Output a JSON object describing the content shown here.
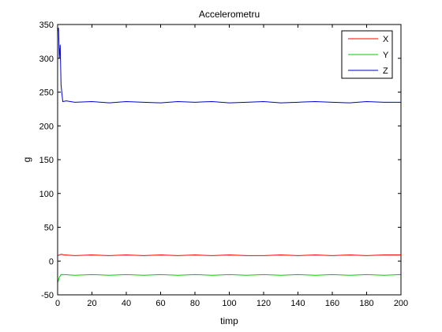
{
  "chart_data": {
    "type": "line",
    "title": "Accelerometru",
    "xlabel": "timp",
    "ylabel": "g",
    "xlim": [
      0,
      200
    ],
    "ylim": [
      -50,
      350
    ],
    "xticks": [
      0,
      20,
      40,
      60,
      80,
      100,
      120,
      140,
      160,
      180,
      200
    ],
    "yticks": [
      -50,
      0,
      50,
      100,
      150,
      200,
      250,
      300,
      350
    ],
    "grid": false,
    "legend_position": "top-right",
    "series": [
      {
        "name": "X",
        "color": "#ff0000",
        "x": [
          0,
          1,
          2,
          4,
          10,
          20,
          30,
          40,
          50,
          60,
          70,
          80,
          90,
          100,
          110,
          120,
          130,
          140,
          150,
          160,
          170,
          180,
          190,
          200
        ],
        "values": [
          8,
          9,
          10,
          9,
          8,
          9,
          8,
          9,
          8,
          9,
          8,
          9,
          8,
          9,
          8,
          8,
          9,
          8,
          9,
          8,
          9,
          8,
          9,
          9
        ]
      },
      {
        "name": "Y",
        "color": "#00cc00",
        "x": [
          0,
          1,
          2,
          4,
          10,
          20,
          30,
          40,
          50,
          60,
          70,
          80,
          90,
          100,
          110,
          120,
          130,
          140,
          150,
          160,
          170,
          180,
          190,
          200
        ],
        "values": [
          -32,
          -24,
          -20,
          -20,
          -21,
          -20,
          -21,
          -20,
          -21,
          -20,
          -21,
          -20,
          -21,
          -20,
          -21,
          -20,
          -21,
          -20,
          -21,
          -20,
          -21,
          -20,
          -21,
          -20
        ]
      },
      {
        "name": "Z",
        "color": "#0000cc",
        "x": [
          0,
          0.5,
          1,
          1.5,
          2,
          3,
          5,
          10,
          20,
          30,
          40,
          50,
          60,
          70,
          80,
          90,
          100,
          110,
          120,
          130,
          140,
          150,
          160,
          170,
          180,
          190,
          200
        ],
        "values": [
          340,
          345,
          300,
          320,
          260,
          236,
          237,
          235,
          236,
          234,
          236,
          235,
          234,
          236,
          235,
          236,
          234,
          235,
          236,
          234,
          235,
          236,
          235,
          234,
          236,
          235,
          235
        ]
      }
    ]
  }
}
